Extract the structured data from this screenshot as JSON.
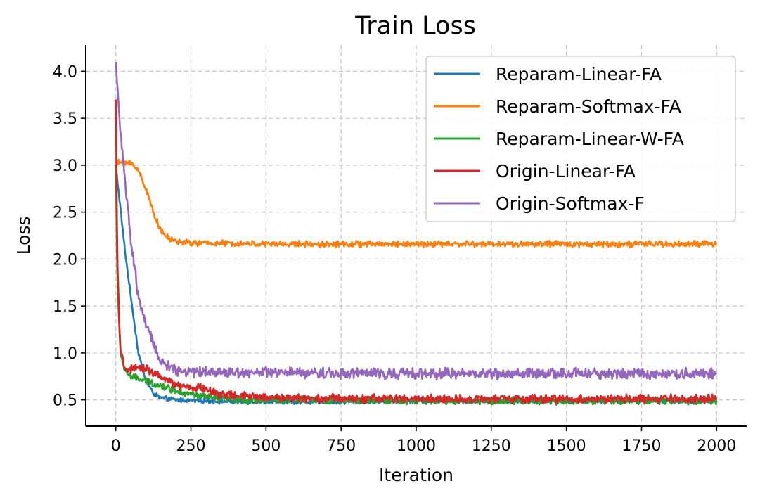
{
  "chart_data": {
    "type": "line",
    "title": "Train Loss",
    "xlabel": "Iteration",
    "ylabel": "Loss",
    "xlim": [
      -100,
      2100
    ],
    "ylim": [
      0.22,
      4.28
    ],
    "xticks": [
      0,
      250,
      500,
      750,
      1000,
      1250,
      1500,
      1750,
      2000
    ],
    "xtick_labels": [
      "0",
      "250",
      "500",
      "750",
      "1000",
      "1250",
      "1500",
      "1750",
      "2000"
    ],
    "yticks": [
      0.5,
      1.0,
      1.5,
      2.0,
      2.5,
      3.0,
      3.5,
      4.0
    ],
    "ytick_labels": [
      "0.5",
      "1.0",
      "1.5",
      "2.0",
      "2.5",
      "3.0",
      "3.5",
      "4.0"
    ],
    "grid": true,
    "legend_position": "upper-right",
    "noise_note": "values are approximate smoothed trends; original curves are noisy",
    "series": [
      {
        "name": "Reparam-Linear-FA",
        "color": "#1f77b4",
        "noise": 0.02,
        "x": [
          0,
          10,
          20,
          30,
          50,
          75,
          100,
          125,
          150,
          200,
          300,
          400,
          500,
          750,
          1000,
          1500,
          2000
        ],
        "y": [
          3.0,
          2.7,
          2.4,
          2.1,
          1.6,
          1.0,
          0.7,
          0.57,
          0.52,
          0.5,
          0.49,
          0.48,
          0.48,
          0.48,
          0.49,
          0.49,
          0.49
        ]
      },
      {
        "name": "Reparam-Softmax-FA",
        "color": "#ff7f0e",
        "noise": 0.025,
        "x": [
          0,
          20,
          50,
          75,
          100,
          125,
          150,
          175,
          200,
          250,
          300,
          500,
          1000,
          1500,
          2000
        ],
        "y": [
          3.02,
          3.03,
          3.02,
          2.95,
          2.75,
          2.5,
          2.3,
          2.22,
          2.19,
          2.17,
          2.17,
          2.16,
          2.16,
          2.16,
          2.16
        ]
      },
      {
        "name": "Reparam-Linear-W-FA",
        "color": "#2ca02c",
        "noise": 0.03,
        "x": [
          0,
          5,
          15,
          30,
          50,
          100,
          150,
          200,
          250,
          300,
          400,
          600,
          1000,
          2000
        ],
        "y": [
          3.0,
          1.8,
          1.0,
          0.82,
          0.75,
          0.7,
          0.65,
          0.6,
          0.56,
          0.53,
          0.5,
          0.5,
          0.49,
          0.49
        ]
      },
      {
        "name": "Origin-Linear-FA",
        "color": "#d62728",
        "noise": 0.035,
        "x": [
          0,
          5,
          15,
          30,
          50,
          100,
          150,
          200,
          250,
          280,
          320,
          400,
          600,
          1000,
          2000
        ],
        "y": [
          3.7,
          2.0,
          1.0,
          0.84,
          0.82,
          0.84,
          0.74,
          0.66,
          0.62,
          0.64,
          0.58,
          0.54,
          0.52,
          0.51,
          0.51
        ]
      },
      {
        "name": "Origin-Softmax-F",
        "color": "#9467bd",
        "noise": 0.045,
        "x": [
          0,
          10,
          25,
          50,
          75,
          100,
          125,
          150,
          200,
          250,
          300,
          500,
          1000,
          1500,
          2000
        ],
        "y": [
          4.1,
          3.6,
          3.0,
          2.2,
          1.6,
          1.3,
          1.1,
          0.9,
          0.82,
          0.8,
          0.8,
          0.79,
          0.78,
          0.78,
          0.78
        ]
      }
    ]
  }
}
